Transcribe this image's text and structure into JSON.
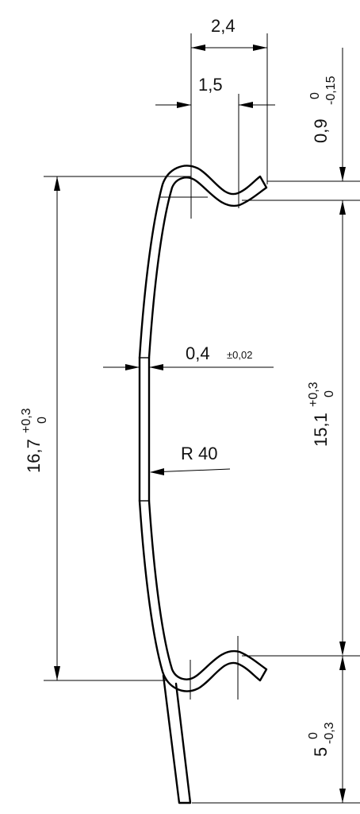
{
  "dimensions": {
    "width_total": "2,4",
    "width_inner": "1,5",
    "thickness": {
      "value": "0,4",
      "tol": "±0,02"
    },
    "radius": "R 40",
    "top_gap": {
      "value": "0,9",
      "upper": "0",
      "lower": "-0,15"
    },
    "height_outer": {
      "value": "16,7",
      "upper": "+0,3",
      "lower": "0"
    },
    "height_inner": {
      "value": "15,1",
      "upper": "+0,3",
      "lower": "0"
    },
    "tail": {
      "value": "5",
      "upper": "0",
      "lower": "-0,3"
    }
  }
}
